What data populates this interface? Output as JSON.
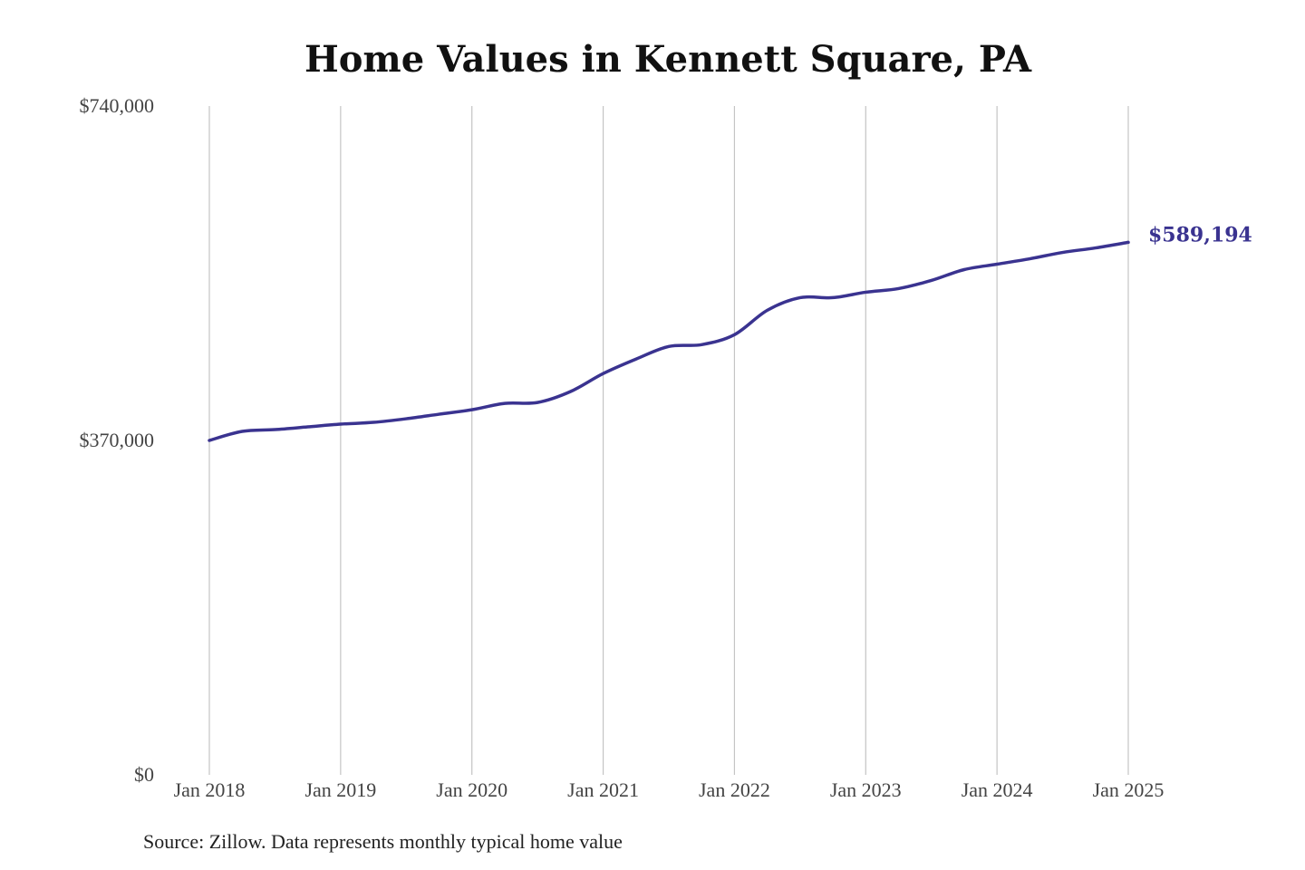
{
  "chart_data": {
    "type": "line",
    "title": "Home Values in Kennett Square, PA",
    "source": "Source: Zillow. Data represents monthly typical home value",
    "xlabel": "",
    "ylabel": "",
    "ylim": [
      0,
      740000
    ],
    "yticks": [
      0,
      370000,
      740000
    ],
    "ytick_labels": [
      "$0",
      "$370,000",
      "$740,000"
    ],
    "xlim": [
      2018.0,
      2025.0
    ],
    "xticks": [
      2018,
      2019,
      2020,
      2021,
      2022,
      2023,
      2024,
      2025
    ],
    "xtick_labels": [
      "Jan 2018",
      "Jan 2019",
      "Jan 2020",
      "Jan 2021",
      "Jan 2022",
      "Jan 2023",
      "Jan 2024",
      "Jan 2025"
    ],
    "grid": "vertical",
    "line_color": "#3a3390",
    "end_label": "$589,194",
    "series": [
      {
        "name": "Typical home value",
        "x": [
          2018.0,
          2018.25,
          2018.5,
          2018.75,
          2019.0,
          2019.25,
          2019.5,
          2019.75,
          2020.0,
          2020.25,
          2020.5,
          2020.75,
          2021.0,
          2021.25,
          2021.5,
          2021.75,
          2022.0,
          2022.25,
          2022.5,
          2022.75,
          2023.0,
          2023.25,
          2023.5,
          2023.75,
          2024.0,
          2024.25,
          2024.5,
          2024.75,
          2025.0
        ],
        "values": [
          370000,
          380000,
          382000,
          385000,
          388000,
          390000,
          394000,
          399000,
          404000,
          411000,
          412000,
          424000,
          444000,
          460000,
          474000,
          476000,
          487000,
          514000,
          528000,
          528000,
          534000,
          538000,
          547000,
          559000,
          565000,
          571000,
          578000,
          583000,
          589194
        ]
      }
    ]
  }
}
